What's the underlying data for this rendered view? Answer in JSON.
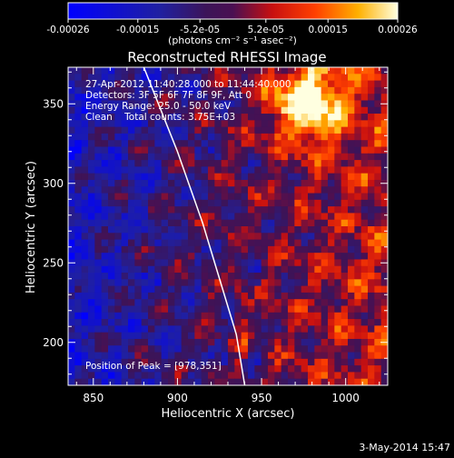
{
  "chart_data": {
    "type": "heatmap",
    "title": "Reconstructed RHESSI Image",
    "xlabel": "Heliocentric X (arcsec)",
    "ylabel": "Heliocentric Y (arcsec)",
    "xlim": [
      835,
      1025
    ],
    "ylim": [
      173,
      373
    ],
    "x_ticks": [
      850,
      900,
      950,
      1000
    ],
    "y_ticks": [
      200,
      250,
      300,
      350
    ],
    "colorbar": {
      "range": [
        -0.00026,
        0.00026
      ],
      "tick_labels": [
        "-0.00026",
        "-0.00015",
        "-5.2e-05",
        "5.2e-05",
        "0.00015",
        "0.00026"
      ],
      "tick_values": [
        -0.00026,
        -0.00015,
        -5.2e-05,
        5.2e-05,
        0.00015,
        0.00026
      ],
      "units_label": "(photons cm⁻² s⁻¹ asec⁻²)"
    },
    "annotations": [
      "27-Apr-2012 11:40:28.000 to 11:44:40.000",
      "Detectors: 3F 5F 6F 7F 8F 9F, Att 0",
      "Energy Range: 25.0 - 50.0 keV",
      "Clean    Total counts: 3.75E+03"
    ],
    "peak_label": "Position of Peak = [978,351]",
    "peak_position": [
      978,
      351
    ],
    "limb_curve": [
      [
        880,
        373
      ],
      [
        900,
        320
      ],
      [
        915,
        275
      ],
      [
        925,
        240
      ],
      [
        935,
        205
      ],
      [
        940,
        173
      ]
    ],
    "date_stamp": "3-May-2014 15:47",
    "colors": {
      "background": "#000000",
      "limb": "#ffffff"
    }
  }
}
